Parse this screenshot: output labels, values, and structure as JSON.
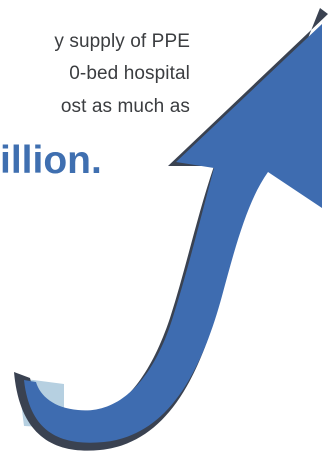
{
  "text": {
    "line1": "y supply of PPE",
    "line2": "0-bed hospital",
    "line3": "ost as much as",
    "highlight": "illion."
  },
  "colors": {
    "body_text": "#3b3d40",
    "highlight_text": "#3f6fb0",
    "arrow_fill": "#3e6cb0",
    "arrow_shadow": "#3a4251",
    "arrow_tail_light": "#b6d0e1"
  },
  "graphic": {
    "arrow_icon": "upward-curved-arrow-icon"
  }
}
